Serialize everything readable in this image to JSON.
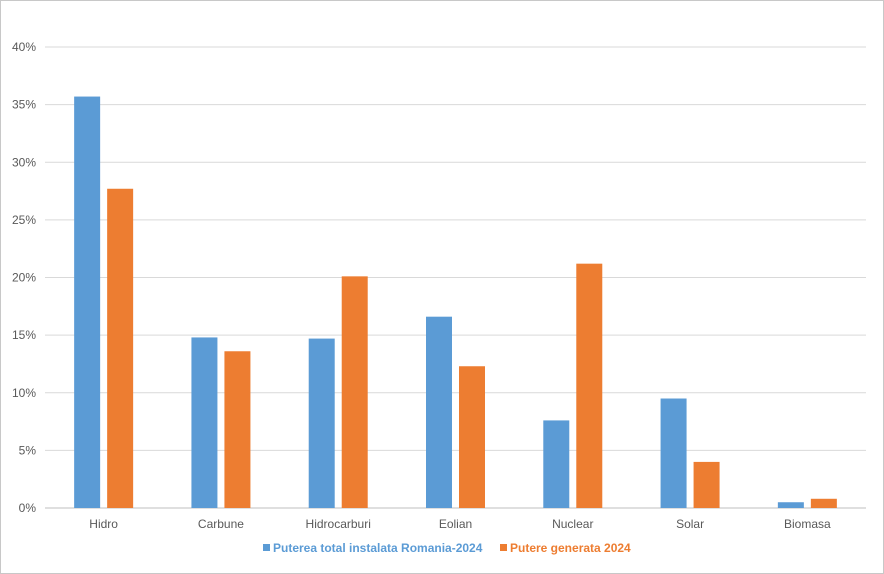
{
  "chart_data": {
    "type": "bar",
    "title": "",
    "xlabel": "",
    "ylabel": "",
    "ylim": [
      0,
      40
    ],
    "yticks": [
      0,
      5,
      10,
      15,
      20,
      25,
      30,
      35,
      40
    ],
    "ytick_suffix": "%",
    "grid": true,
    "legend_position": "bottom",
    "categories": [
      "Hidro",
      "Carbune",
      "Hidrocarburi",
      "Eolian",
      "Nuclear",
      "Solar",
      "Biomasa"
    ],
    "series": [
      {
        "name": "Puterea total instalata Romania-2024",
        "color": "#5b9bd5",
        "values": [
          35.7,
          14.8,
          14.7,
          16.6,
          7.6,
          9.5,
          0.5
        ]
      },
      {
        "name": "Putere generata 2024",
        "color": "#ed7d31",
        "values": [
          27.7,
          13.6,
          20.1,
          12.3,
          21.2,
          4.0,
          0.8
        ]
      }
    ]
  }
}
